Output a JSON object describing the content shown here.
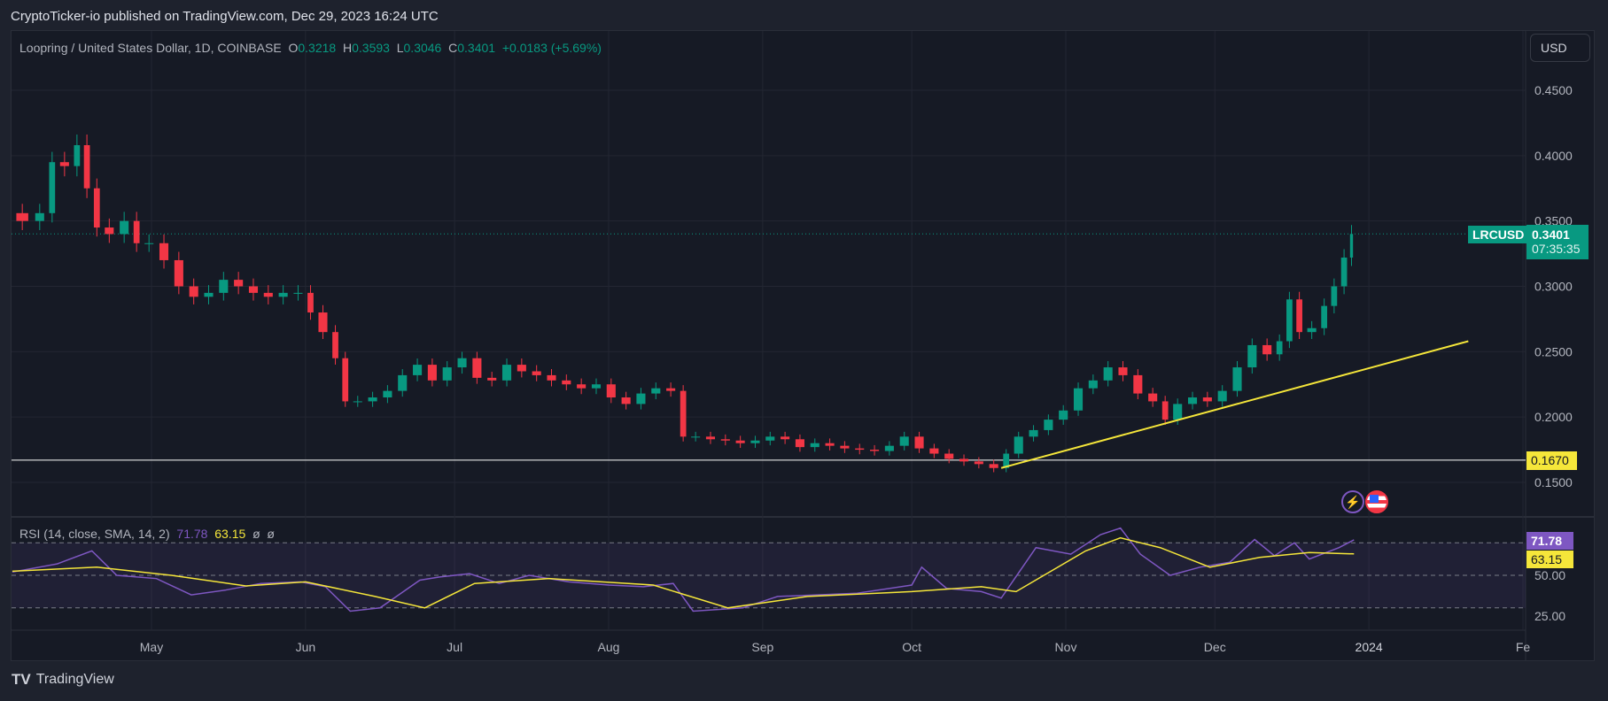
{
  "header": {
    "published": "CryptoTicker-io published on TradingView.com, Dec 29, 2023 16:24 UTC"
  },
  "legend": {
    "symbol": "Loopring / United States Dollar, 1D, COINBASE",
    "o_label": "O",
    "o": "0.3218",
    "h_label": "H",
    "h": "0.3593",
    "l_label": "L",
    "l": "0.3046",
    "c_label": "C",
    "c": "0.3401",
    "change": "+0.0183 (+5.69%)"
  },
  "currency_button": "USD",
  "price_tag": {
    "symbol": "LRCUSD",
    "price": "0.3401",
    "countdown": "07:35:35"
  },
  "horizontal_line_label": "0.1670",
  "rsi_legend": {
    "title": "RSI (14, close, SMA, 14, 2)",
    "rsi": "71.78",
    "sma": "63.15",
    "n1": "ø",
    "n2": "ø"
  },
  "rsi_tags": {
    "rsi": "71.78",
    "sma": "63.15"
  },
  "footer": {
    "brand": "TradingView"
  },
  "icons": [
    "lightning-icon",
    "us-flag-icon"
  ],
  "colors": {
    "up": "#089981",
    "down": "#f23645",
    "rsi": "#7e57c2",
    "sma": "#f5e63a",
    "trendline": "#f5e63a",
    "hline": "#ffffff"
  },
  "chart_data": {
    "type": "candlestick",
    "price_axis": {
      "ticks": [
        "0.4500",
        "0.4000",
        "0.3500",
        "0.3000",
        "0.2500",
        "0.2000",
        "0.1500"
      ],
      "ylim": [
        0.13,
        0.47
      ]
    },
    "time_axis": {
      "ticks": [
        {
          "label": "May",
          "date": "2023-05-01"
        },
        {
          "label": "Jun",
          "date": "2023-06-01"
        },
        {
          "label": "Jul",
          "date": "2023-07-01"
        },
        {
          "label": "Aug",
          "date": "2023-08-01"
        },
        {
          "label": "Sep",
          "date": "2023-09-01"
        },
        {
          "label": "Oct",
          "date": "2023-10-01"
        },
        {
          "label": "Nov",
          "date": "2023-11-01"
        },
        {
          "label": "Dec",
          "date": "2023-12-01"
        },
        {
          "label": "2024",
          "date": "2024-01-01"
        },
        {
          "label": "Fe",
          "date": "2024-02-01"
        }
      ]
    },
    "closes": [
      [
        "2023-04-03",
        0.356
      ],
      [
        "2023-04-07",
        0.35
      ],
      [
        "2023-04-10",
        0.356
      ],
      [
        "2023-04-12",
        0.395
      ],
      [
        "2023-04-15",
        0.392
      ],
      [
        "2023-04-17",
        0.408
      ],
      [
        "2023-04-19",
        0.375
      ],
      [
        "2023-04-21",
        0.345
      ],
      [
        "2023-04-24",
        0.34
      ],
      [
        "2023-04-27",
        0.35
      ],
      [
        "2023-04-29",
        0.333
      ],
      [
        "2023-05-02",
        0.333
      ],
      [
        "2023-05-05",
        0.32
      ],
      [
        "2023-05-08",
        0.3
      ],
      [
        "2023-05-11",
        0.292
      ],
      [
        "2023-05-14",
        0.295
      ],
      [
        "2023-05-17",
        0.305
      ],
      [
        "2023-05-20",
        0.3
      ],
      [
        "2023-05-23",
        0.295
      ],
      [
        "2023-05-26",
        0.292
      ],
      [
        "2023-05-29",
        0.295
      ],
      [
        "2023-06-01",
        0.295
      ],
      [
        "2023-06-03",
        0.28
      ],
      [
        "2023-06-06",
        0.265
      ],
      [
        "2023-06-08",
        0.245
      ],
      [
        "2023-06-10",
        0.212
      ],
      [
        "2023-06-13",
        0.212
      ],
      [
        "2023-06-16",
        0.215
      ],
      [
        "2023-06-19",
        0.22
      ],
      [
        "2023-06-22",
        0.232
      ],
      [
        "2023-06-25",
        0.24
      ],
      [
        "2023-06-28",
        0.228
      ],
      [
        "2023-07-01",
        0.238
      ],
      [
        "2023-07-04",
        0.245
      ],
      [
        "2023-07-07",
        0.23
      ],
      [
        "2023-07-10",
        0.228
      ],
      [
        "2023-07-13",
        0.24
      ],
      [
        "2023-07-16",
        0.235
      ],
      [
        "2023-07-19",
        0.232
      ],
      [
        "2023-07-22",
        0.228
      ],
      [
        "2023-07-25",
        0.225
      ],
      [
        "2023-07-28",
        0.222
      ],
      [
        "2023-07-31",
        0.225
      ],
      [
        "2023-08-03",
        0.215
      ],
      [
        "2023-08-06",
        0.21
      ],
      [
        "2023-08-09",
        0.218
      ],
      [
        "2023-08-12",
        0.222
      ],
      [
        "2023-08-15",
        0.22
      ],
      [
        "2023-08-17",
        0.185
      ],
      [
        "2023-08-20",
        0.185
      ],
      [
        "2023-08-23",
        0.183
      ],
      [
        "2023-08-26",
        0.182
      ],
      [
        "2023-08-29",
        0.18
      ],
      [
        "2023-09-01",
        0.182
      ],
      [
        "2023-09-04",
        0.185
      ],
      [
        "2023-09-07",
        0.183
      ],
      [
        "2023-09-10",
        0.177
      ],
      [
        "2023-09-13",
        0.18
      ],
      [
        "2023-09-16",
        0.178
      ],
      [
        "2023-09-19",
        0.176
      ],
      [
        "2023-09-22",
        0.175
      ],
      [
        "2023-09-25",
        0.174
      ],
      [
        "2023-09-28",
        0.178
      ],
      [
        "2023-10-01",
        0.185
      ],
      [
        "2023-10-04",
        0.176
      ],
      [
        "2023-10-07",
        0.172
      ],
      [
        "2023-10-10",
        0.168
      ],
      [
        "2023-10-13",
        0.166
      ],
      [
        "2023-10-16",
        0.164
      ],
      [
        "2023-10-19",
        0.161
      ],
      [
        "2023-10-21",
        0.172
      ],
      [
        "2023-10-24",
        0.185
      ],
      [
        "2023-10-27",
        0.19
      ],
      [
        "2023-10-30",
        0.198
      ],
      [
        "2023-11-02",
        0.205
      ],
      [
        "2023-11-05",
        0.222
      ],
      [
        "2023-11-08",
        0.228
      ],
      [
        "2023-11-11",
        0.238
      ],
      [
        "2023-11-14",
        0.232
      ],
      [
        "2023-11-17",
        0.218
      ],
      [
        "2023-11-20",
        0.212
      ],
      [
        "2023-11-22",
        0.198
      ],
      [
        "2023-11-25",
        0.21
      ],
      [
        "2023-11-28",
        0.215
      ],
      [
        "2023-12-01",
        0.212
      ],
      [
        "2023-12-04",
        0.22
      ],
      [
        "2023-12-07",
        0.238
      ],
      [
        "2023-12-10",
        0.255
      ],
      [
        "2023-12-13",
        0.248
      ],
      [
        "2023-12-15",
        0.258
      ],
      [
        "2023-12-17",
        0.29
      ],
      [
        "2023-12-19",
        0.265
      ],
      [
        "2023-12-22",
        0.268
      ],
      [
        "2023-12-24",
        0.285
      ],
      [
        "2023-12-26",
        0.3
      ],
      [
        "2023-12-28",
        0.322
      ],
      [
        "2023-12-29",
        0.3401
      ]
    ],
    "horizontal_line": 0.167,
    "trendline": [
      [
        "2023-10-19",
        0.161
      ],
      [
        "2024-01-21",
        0.258
      ]
    ],
    "last_price": 0.3401,
    "rsi_axis": {
      "ticks": [
        "50.00",
        "25.00"
      ],
      "bands": [
        30,
        50,
        70
      ],
      "ylim": [
        15,
        85
      ]
    },
    "rsi": [
      [
        "2023-04-03",
        52
      ],
      [
        "2023-04-12",
        57
      ],
      [
        "2023-04-19",
        65
      ],
      [
        "2023-04-24",
        50
      ],
      [
        "2023-05-02",
        48
      ],
      [
        "2023-05-09",
        38
      ],
      [
        "2023-05-16",
        41
      ],
      [
        "2023-05-23",
        45
      ],
      [
        "2023-05-31",
        46
      ],
      [
        "2023-06-05",
        43
      ],
      [
        "2023-06-10",
        28
      ],
      [
        "2023-06-16",
        30
      ],
      [
        "2023-06-24",
        47
      ],
      [
        "2023-06-28",
        49
      ],
      [
        "2023-07-04",
        51
      ],
      [
        "2023-07-10",
        45
      ],
      [
        "2023-07-16",
        50
      ],
      [
        "2023-07-24",
        46
      ],
      [
        "2023-08-01",
        44
      ],
      [
        "2023-08-08",
        43
      ],
      [
        "2023-08-14",
        45
      ],
      [
        "2023-08-18",
        28
      ],
      [
        "2023-08-28",
        30
      ],
      [
        "2023-09-04",
        37
      ],
      [
        "2023-09-12",
        38
      ],
      [
        "2023-09-20",
        39
      ],
      [
        "2023-10-01",
        44
      ],
      [
        "2023-10-03",
        55
      ],
      [
        "2023-10-08",
        42
      ],
      [
        "2023-10-15",
        40
      ],
      [
        "2023-10-19",
        36
      ],
      [
        "2023-10-26",
        67
      ],
      [
        "2023-11-02",
        63
      ],
      [
        "2023-11-08",
        75
      ],
      [
        "2023-11-12",
        79
      ],
      [
        "2023-11-16",
        63
      ],
      [
        "2023-11-22",
        50
      ],
      [
        "2023-11-28",
        55
      ],
      [
        "2023-12-04",
        58
      ],
      [
        "2023-12-09",
        72
      ],
      [
        "2023-12-13",
        62
      ],
      [
        "2023-12-17",
        70
      ],
      [
        "2023-12-20",
        60
      ],
      [
        "2023-12-26",
        67
      ],
      [
        "2023-12-29",
        71.78
      ]
    ],
    "rsi_sma": [
      [
        "2023-04-03",
        52.5
      ],
      [
        "2023-04-20",
        55
      ],
      [
        "2023-05-05",
        50
      ],
      [
        "2023-05-20",
        43.5
      ],
      [
        "2023-06-01",
        46
      ],
      [
        "2023-06-15",
        37
      ],
      [
        "2023-06-25",
        30
      ],
      [
        "2023-07-05",
        45
      ],
      [
        "2023-07-20",
        48
      ],
      [
        "2023-08-10",
        44
      ],
      [
        "2023-08-25",
        30
      ],
      [
        "2023-09-10",
        37
      ],
      [
        "2023-10-01",
        40
      ],
      [
        "2023-10-15",
        43
      ],
      [
        "2023-10-22",
        40
      ],
      [
        "2023-11-05",
        65
      ],
      [
        "2023-11-12",
        73
      ],
      [
        "2023-11-20",
        67
      ],
      [
        "2023-11-30",
        55
      ],
      [
        "2023-12-10",
        61
      ],
      [
        "2023-12-20",
        64
      ],
      [
        "2023-12-29",
        63.15
      ]
    ]
  }
}
